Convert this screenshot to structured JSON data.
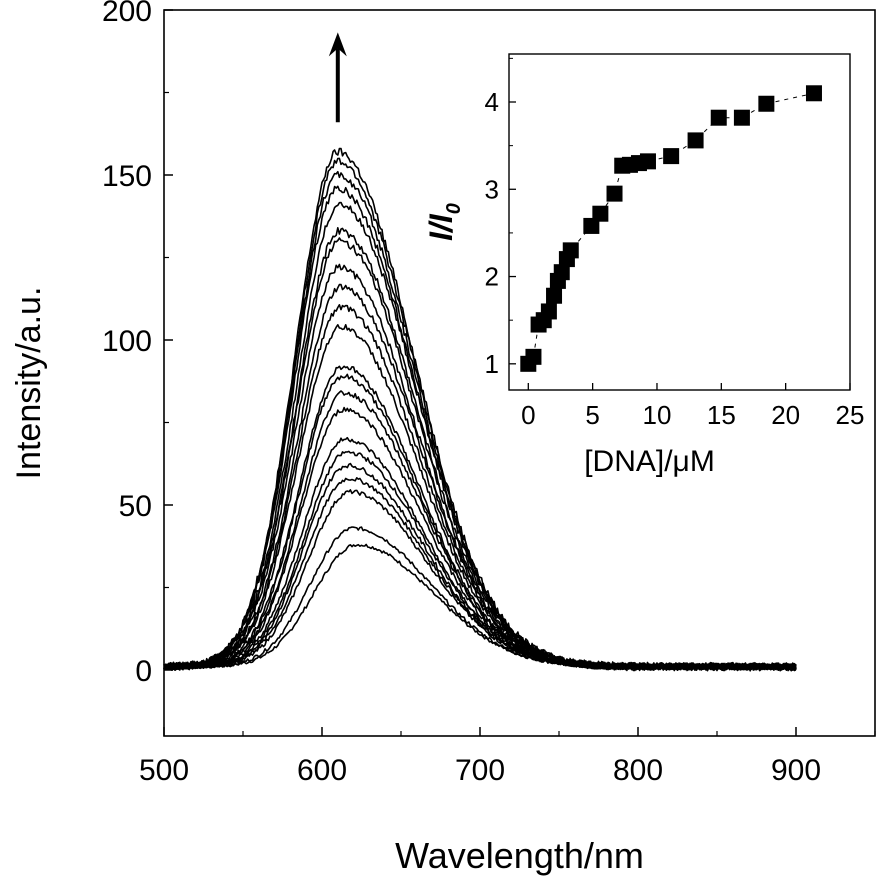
{
  "chart_data": [
    {
      "type": "line",
      "xlabel": "Wavelength/nm",
      "ylabel": "Intensity/a.u.",
      "xlim": [
        500,
        950
      ],
      "ylim": [
        -20,
        200
      ],
      "x_ticks": [
        500,
        600,
        700,
        800,
        900
      ],
      "x_tick_labels": [
        "500",
        "600",
        "700",
        "800",
        "900"
      ],
      "y_ticks": [
        0,
        50,
        100,
        150,
        200
      ],
      "y_tick_labels": [
        "0",
        "50",
        "100",
        "150",
        "200"
      ],
      "annotations": [
        {
          "type": "arrow",
          "direction": "up",
          "x": 610,
          "y_from": 166,
          "y_to": 192
        }
      ],
      "series_peaks": [
        {
          "peak": 37,
          "center": 622
        },
        {
          "peak": 42,
          "center": 620
        },
        {
          "peak": 53,
          "center": 618
        },
        {
          "peak": 57,
          "center": 617
        },
        {
          "peak": 61,
          "center": 616
        },
        {
          "peak": 65,
          "center": 616
        },
        {
          "peak": 69,
          "center": 615
        },
        {
          "peak": 78,
          "center": 614
        },
        {
          "peak": 83,
          "center": 614
        },
        {
          "peak": 88,
          "center": 613
        },
        {
          "peak": 91,
          "center": 613
        },
        {
          "peak": 103,
          "center": 612
        },
        {
          "peak": 109,
          "center": 612
        },
        {
          "peak": 115,
          "center": 612
        },
        {
          "peak": 121,
          "center": 611
        },
        {
          "peak": 129,
          "center": 611
        },
        {
          "peak": 132,
          "center": 611
        },
        {
          "peak": 140,
          "center": 611
        },
        {
          "peak": 145,
          "center": 610
        },
        {
          "peak": 149,
          "center": 610
        },
        {
          "peak": 153,
          "center": 610
        },
        {
          "peak": 156,
          "center": 610
        }
      ],
      "baseline": 1,
      "x_range": [
        500,
        900
      ]
    },
    {
      "type": "scatter",
      "name": "inset",
      "xlabel": "[DNA]/μM",
      "ylabel": "I/I0",
      "xlim": [
        -1.5,
        25
      ],
      "ylim": [
        0.7,
        4.55
      ],
      "x_ticks": [
        0,
        5,
        10,
        15,
        20,
        25
      ],
      "x_tick_labels": [
        "0",
        "5",
        "10",
        "15",
        "20",
        "25"
      ],
      "y_ticks": [
        1,
        2,
        3,
        4
      ],
      "y_tick_labels": [
        "1",
        "2",
        "3",
        "4"
      ],
      "ylabel_main": "I/I",
      "ylabel_sub": "0",
      "x": [
        0,
        0.4,
        0.8,
        1.2,
        1.6,
        2.0,
        2.3,
        2.6,
        3.0,
        3.3,
        4.9,
        5.6,
        6.7,
        7.3,
        7.9,
        8.6,
        9.3,
        11.1,
        13.0,
        14.8,
        16.6,
        18.5,
        22.2
      ],
      "y": [
        1.0,
        1.08,
        1.45,
        1.5,
        1.6,
        1.78,
        1.95,
        2.05,
        2.2,
        2.3,
        2.58,
        2.72,
        2.95,
        3.27,
        3.28,
        3.3,
        3.32,
        3.38,
        3.56,
        3.82,
        3.82,
        3.98,
        4.1
      ]
    }
  ]
}
